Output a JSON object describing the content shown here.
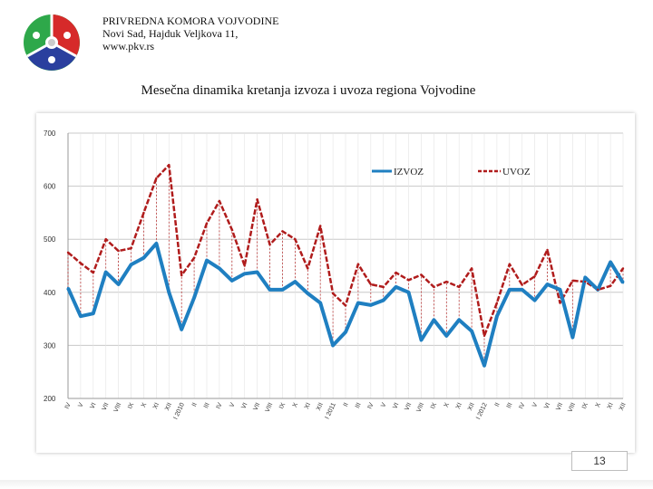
{
  "header": {
    "org_name": "PRIVREDNA KOMORA VOJVODINE",
    "address": "Novi Sad, Hajduk Veljkova 11,",
    "website": "www.pkv.rs"
  },
  "slide": {
    "page_number": "13"
  },
  "colors": {
    "izvoz": "#1f7fc1",
    "uvoz": "#b01c1c",
    "grid": "#c8c8c8",
    "logo_green": "#2ea84a",
    "logo_red": "#d62a2a",
    "logo_blue": "#2a3f9e"
  },
  "chart_data": {
    "type": "line",
    "title": "Mesečna dinamika kretanja izvoza i uvoza regiona Vojvodine",
    "ylim": [
      200,
      700
    ],
    "yticks": [
      200,
      300,
      400,
      500,
      600,
      700
    ],
    "grid": true,
    "legend": "top-right",
    "categories": [
      "IV",
      "V",
      "VI",
      "VII",
      "VIII",
      "IX",
      "X",
      "XI",
      "XII",
      "I 2010",
      "II",
      "III",
      "IV",
      "V",
      "VI",
      "VII",
      "VIII",
      "IX",
      "X",
      "XI",
      "XII",
      "I 2011",
      "II",
      "III",
      "IV",
      "V",
      "VI",
      "VII",
      "VIII",
      "IX",
      "X",
      "XI",
      "XII",
      "I 2012",
      "II",
      "III",
      "IV",
      "V",
      "VI",
      "VII",
      "VIII",
      "IX",
      "X",
      "XI",
      "XII"
    ],
    "series": [
      {
        "name": "IZVOZ",
        "values": [
          408,
          355,
          360,
          438,
          415,
          452,
          465,
          492,
          400,
          330,
          390,
          460,
          445,
          422,
          435,
          438,
          405,
          405,
          420,
          398,
          380,
          300,
          325,
          380,
          376,
          385,
          410,
          400,
          310,
          348,
          318,
          348,
          327,
          262,
          355,
          405,
          405,
          385,
          415,
          405,
          315,
          428,
          405,
          457,
          418
        ]
      },
      {
        "name": "UVOZ",
        "values": [
          475,
          455,
          437,
          500,
          478,
          483,
          550,
          615,
          640,
          432,
          465,
          530,
          572,
          518,
          450,
          575,
          490,
          515,
          500,
          445,
          525,
          398,
          375,
          453,
          415,
          410,
          437,
          423,
          433,
          410,
          420,
          410,
          445,
          318,
          380,
          453,
          414,
          430,
          480,
          380,
          422,
          420,
          405,
          412,
          445
        ]
      }
    ]
  }
}
